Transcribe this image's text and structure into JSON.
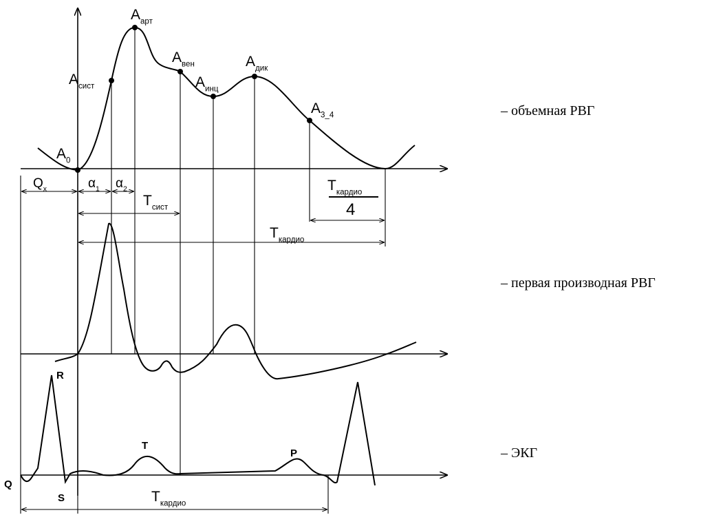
{
  "labels": [
    {
      "main": "А",
      "sub": "0"
    },
    {
      "main": "А",
      "sub": "сист"
    },
    {
      "main": "А",
      "sub": "арт"
    },
    {
      "main": "А",
      "sub": "вен"
    },
    {
      "main": "А",
      "sub": "инц"
    },
    {
      "main": "А",
      "sub": "дик"
    },
    {
      "main": "А",
      "sub": "3_4"
    },
    {
      "main": "Q",
      "sub": "x"
    },
    {
      "main": "α",
      "sub": "1"
    },
    {
      "main": "α",
      "sub": "2"
    },
    {
      "main": "Т",
      "sub": "сист"
    },
    {
      "main": "Т",
      "sub": "кардио"
    },
    {
      "main": "Т",
      "sub": "кардио"
    }
  ],
  "fraction": {
    "main": "Т",
    "sub": "кардио",
    "denominator": "4"
  },
  "ecg_waves": [
    "R",
    "S",
    "Q",
    "T",
    "P"
  ],
  "legend": [
    "– объемная РВГ",
    "– первая производная РВГ",
    "– ЭКГ"
  ]
}
